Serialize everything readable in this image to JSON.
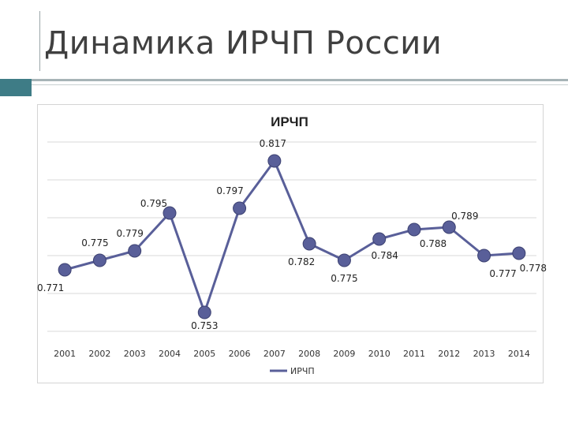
{
  "slide": {
    "title": "Динамика ИРЧП России"
  },
  "colors": {
    "accent": "#3e7c86",
    "series": "#595f99",
    "grid": "#d9d9d9"
  },
  "chart_data": {
    "type": "line",
    "title": "ИРЧП",
    "xlabel": "",
    "ylabel": "",
    "categories": [
      "2001",
      "2002",
      "2003",
      "2004",
      "2005",
      "2006",
      "2007",
      "2008",
      "2009",
      "2010",
      "2011",
      "2012",
      "2013",
      "2014"
    ],
    "series": [
      {
        "name": "ИРЧП",
        "values": [
          0.771,
          0.775,
          0.779,
          0.795,
          0.753,
          0.797,
          0.817,
          0.782,
          0.775,
          0.784,
          0.788,
          0.789,
          0.777,
          0.778
        ],
        "labels": [
          "0.771",
          "0.775",
          "0.779",
          "0.795",
          "0.753",
          "0.797",
          "0.817",
          "0.782",
          "0.775",
          "0.784",
          "0.788",
          "0.789",
          "0.777",
          "0.778"
        ]
      }
    ],
    "ylim": [
      0.745,
      0.825
    ],
    "grid": true,
    "legend": "bottom"
  }
}
